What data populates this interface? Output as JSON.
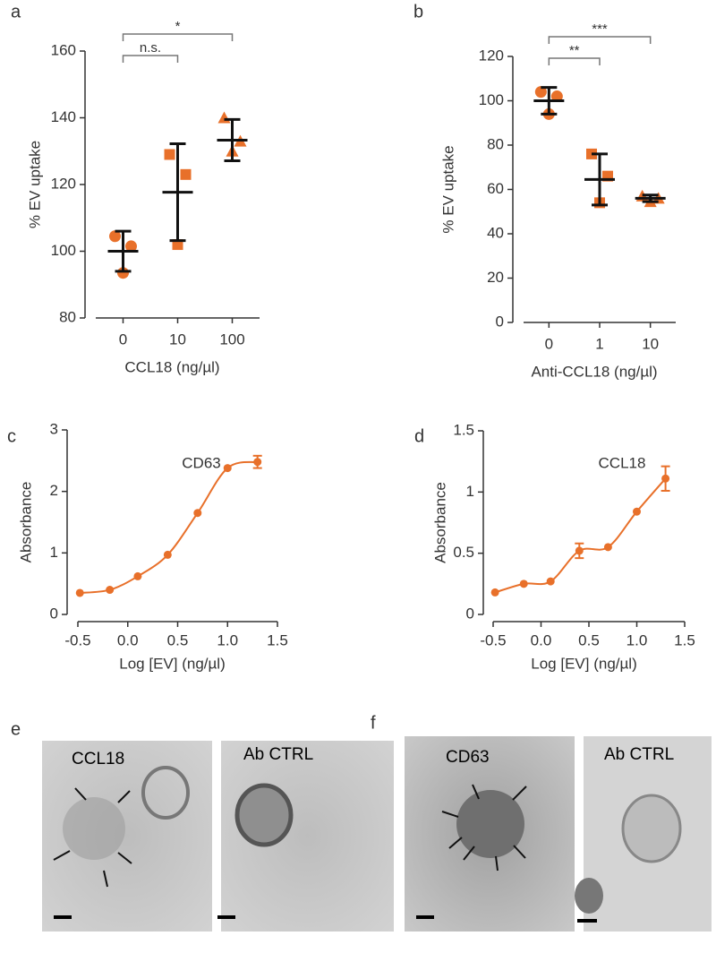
{
  "chart_data": [
    {
      "type": "dotplot",
      "panel": "a",
      "ylabel": "% EV uptake",
      "xlabel": "CCL18 (ng/µl)",
      "categories": [
        "0",
        "10",
        "100"
      ],
      "color": "#e8702a",
      "markers": [
        "circle",
        "square",
        "triangle"
      ],
      "points": [
        [
          104.5,
          101.5,
          93.5
        ],
        [
          129,
          123,
          102
        ],
        [
          140,
          133,
          130
        ]
      ],
      "means": [
        100,
        117.7,
        133.3
      ],
      "errors": [
        6,
        14.5,
        6.2
      ],
      "ylim": [
        80,
        160
      ],
      "yticks": [
        80,
        100,
        120,
        140,
        160
      ],
      "comparisons": [
        {
          "from": 0,
          "to": 1,
          "label": "n.s."
        },
        {
          "from": 0,
          "to": 2,
          "label": "*"
        }
      ]
    },
    {
      "type": "dotplot",
      "panel": "b",
      "ylabel": "% EV uptake",
      "xlabel": "Anti-CCL18 (ng/µl)",
      "categories": [
        "0",
        "1",
        "10"
      ],
      "color": "#e8702a",
      "markers": [
        "circle",
        "square",
        "triangle"
      ],
      "points": [
        [
          104,
          102,
          94
        ],
        [
          76,
          66,
          54
        ],
        [
          57,
          56,
          54.5
        ]
      ],
      "means": [
        100,
        64.5,
        56
      ],
      "errors": [
        6,
        11.5,
        1.5
      ],
      "ylim": [
        0,
        120
      ],
      "yticks": [
        0,
        20,
        40,
        60,
        80,
        100,
        120
      ],
      "comparisons": [
        {
          "from": 0,
          "to": 1,
          "label": "**"
        },
        {
          "from": 0,
          "to": 2,
          "label": "***"
        }
      ]
    },
    {
      "type": "curve",
      "panel": "c",
      "ylabel": "Absorbance",
      "xlabel": "Log [EV] (ng/µl)",
      "annotation": "CD63",
      "color": "#e8702a",
      "x": [
        -0.48,
        -0.18,
        0.1,
        0.4,
        0.7,
        1.0,
        1.3
      ],
      "values": [
        0.35,
        0.4,
        0.62,
        0.97,
        1.65,
        2.38,
        2.48
      ],
      "errors": [
        null,
        null,
        null,
        null,
        null,
        null,
        0.1
      ],
      "xlim": [
        -0.5,
        1.5
      ],
      "xticks": [
        -0.5,
        {
          "value": 0,
          "label": "0.0"
        },
        0.5,
        {
          "value": 1,
          "label": "1.0"
        },
        1.5
      ],
      "ylim": [
        0,
        3
      ],
      "yticks": [
        0,
        1,
        2,
        3
      ]
    },
    {
      "type": "curve",
      "panel": "d",
      "ylabel": "Absorbance",
      "xlabel": "Log [EV] (ng/µl)",
      "annotation": "CCL18",
      "color": "#e8702a",
      "x": [
        -0.48,
        -0.18,
        0.1,
        0.4,
        0.7,
        1.0,
        1.3
      ],
      "values": [
        0.18,
        0.25,
        0.27,
        0.52,
        0.55,
        0.84,
        1.11
      ],
      "errors": [
        null,
        null,
        null,
        0.06,
        null,
        null,
        0.1
      ],
      "xlim": [
        -0.5,
        1.5
      ],
      "xticks": [
        -0.5,
        {
          "value": 0,
          "label": "0.0"
        },
        0.5,
        {
          "value": 1,
          "label": "1.0"
        },
        1.5
      ],
      "ylim": [
        0,
        1.5
      ],
      "yticks": [
        0,
        0.5,
        1,
        1.5
      ]
    }
  ],
  "micrographs": [
    {
      "panel": "e",
      "labels": [
        "CCL18",
        "Ab CTRL"
      ]
    },
    {
      "panel": "f",
      "labels": [
        "CD63",
        "Ab CTRL"
      ]
    }
  ]
}
